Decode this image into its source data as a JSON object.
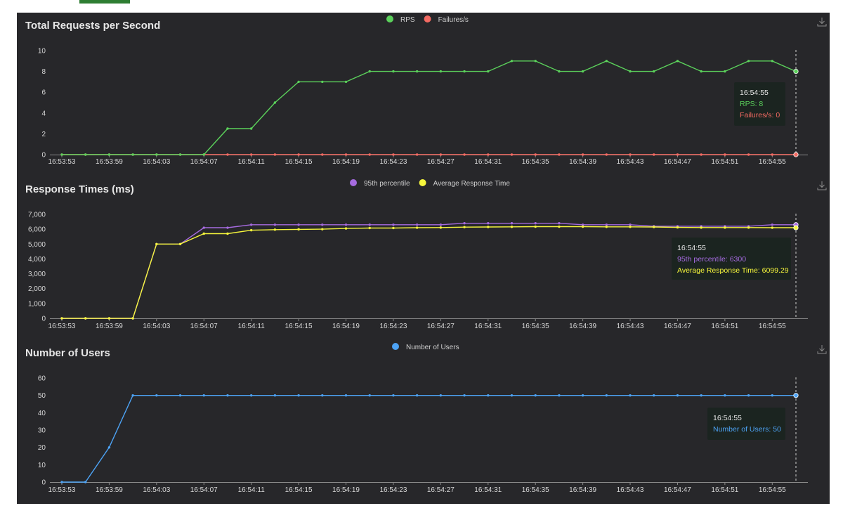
{
  "colors": {
    "rps": "#5bd15b",
    "failures": "#f36a62",
    "p95": "#a66be0",
    "avg": "#f6f63c",
    "users": "#4da3f5",
    "grid_axis": "#8a8a8a",
    "tooltip_bg": "#1b2420"
  },
  "icons": [
    "download-icon"
  ],
  "times": [
    "16:53:53",
    "16:53:55",
    "16:53:57",
    "16:53:59",
    "16:54:01",
    "16:54:03",
    "16:54:05",
    "16:54:07",
    "16:54:09",
    "16:54:11",
    "16:54:13",
    "16:54:15",
    "16:54:17",
    "16:54:19",
    "16:54:21",
    "16:54:23",
    "16:54:25",
    "16:54:27",
    "16:54:29",
    "16:54:31",
    "16:54:33",
    "16:54:35",
    "16:54:37",
    "16:54:39",
    "16:54:41",
    "16:54:43",
    "16:54:45",
    "16:54:47",
    "16:54:49",
    "16:54:51",
    "16:54:53",
    "16:54:55"
  ],
  "chart_data": [
    {
      "type": "line",
      "title": "Total Requests per Second",
      "xlabel": "",
      "ylabel": "",
      "ylim": [
        0,
        10
      ],
      "yticks": [
        0,
        2,
        4,
        6,
        8,
        10
      ],
      "xtick_labels": [
        "16:53:53",
        "16:53:59",
        "16:54:03",
        "16:54:07",
        "16:54:11",
        "16:54:15",
        "16:54:19",
        "16:54:23",
        "16:54:27",
        "16:54:31",
        "16:54:35",
        "16:54:39",
        "16:54:43",
        "16:54:47",
        "16:54:51",
        "16:54:55"
      ],
      "series": [
        {
          "name": "RPS",
          "color_key": "rps",
          "values": [
            0,
            0,
            0,
            0,
            0,
            0,
            0,
            2.5,
            2.5,
            5,
            7,
            7,
            7,
            8,
            8,
            8,
            8,
            8,
            8,
            9,
            9,
            8,
            8,
            9,
            8,
            8,
            9,
            8,
            8,
            9,
            9,
            8
          ]
        },
        {
          "name": "Failures/s",
          "color_key": "failures",
          "values": [
            0,
            0,
            0,
            0,
            0,
            0,
            0,
            0,
            0,
            0,
            0,
            0,
            0,
            0,
            0,
            0,
            0,
            0,
            0,
            0,
            0,
            0,
            0,
            0,
            0,
            0,
            0,
            0,
            0,
            0,
            0,
            0
          ]
        }
      ],
      "tooltip": {
        "time": "16:54:55",
        "lines": [
          "RPS: 8",
          "Failures/s: 0"
        ]
      }
    },
    {
      "type": "line",
      "title": "Response Times (ms)",
      "xlabel": "",
      "ylabel": "",
      "ylim": [
        0,
        7000
      ],
      "yticks": [
        0,
        1000,
        2000,
        3000,
        4000,
        5000,
        6000,
        7000
      ],
      "ytick_labels": [
        "0",
        "1,000",
        "2,000",
        "3,000",
        "4,000",
        "5,000",
        "6,000",
        "7,000"
      ],
      "xtick_labels": [
        "16:53:53",
        "16:53:59",
        "16:54:03",
        "16:54:07",
        "16:54:11",
        "16:54:15",
        "16:54:19",
        "16:54:23",
        "16:54:27",
        "16:54:31",
        "16:54:35",
        "16:54:39",
        "16:54:43",
        "16:54:47",
        "16:54:51",
        "16:54:55"
      ],
      "series": [
        {
          "name": "95th percentile",
          "color_key": "p95",
          "values": [
            0,
            0,
            0,
            0,
            5000,
            5000,
            6100,
            6100,
            6300,
            6300,
            6300,
            6300,
            6300,
            6300,
            6300,
            6300,
            6300,
            6400,
            6400,
            6400,
            6400,
            6400,
            6300,
            6300,
            6300,
            6200,
            6200,
            6200,
            6200,
            6200,
            6300,
            6300
          ]
        },
        {
          "name": "Average Response Time",
          "color_key": "avg",
          "values": [
            0,
            0,
            0,
            0,
            5000,
            5000,
            5700,
            5700,
            5930,
            5970,
            5990,
            6000,
            6050,
            6080,
            6080,
            6100,
            6110,
            6140,
            6150,
            6160,
            6170,
            6170,
            6170,
            6160,
            6160,
            6150,
            6120,
            6110,
            6110,
            6110,
            6100,
            6099.29
          ]
        }
      ],
      "tooltip": {
        "time": "16:54:55",
        "lines": [
          "95th percentile: 6300",
          "Average Response Time: 6099.29"
        ]
      }
    },
    {
      "type": "line",
      "title": "Number of Users",
      "xlabel": "",
      "ylabel": "",
      "ylim": [
        0,
        60
      ],
      "yticks": [
        0,
        10,
        20,
        30,
        40,
        50,
        60
      ],
      "xtick_labels": [
        "16:53:53",
        "16:53:59",
        "16:54:03",
        "16:54:07",
        "16:54:11",
        "16:54:15",
        "16:54:19",
        "16:54:23",
        "16:54:27",
        "16:54:31",
        "16:54:35",
        "16:54:39",
        "16:54:43",
        "16:54:47",
        "16:54:51",
        "16:54:55"
      ],
      "series": [
        {
          "name": "Number of Users",
          "color_key": "users",
          "values": [
            0,
            0,
            20,
            50,
            50,
            50,
            50,
            50,
            50,
            50,
            50,
            50,
            50,
            50,
            50,
            50,
            50,
            50,
            50,
            50,
            50,
            50,
            50,
            50,
            50,
            50,
            50,
            50,
            50,
            50,
            50,
            50
          ]
        }
      ],
      "tooltip": {
        "time": "16:54:55",
        "lines": [
          "Number of Users: 50"
        ]
      }
    }
  ]
}
